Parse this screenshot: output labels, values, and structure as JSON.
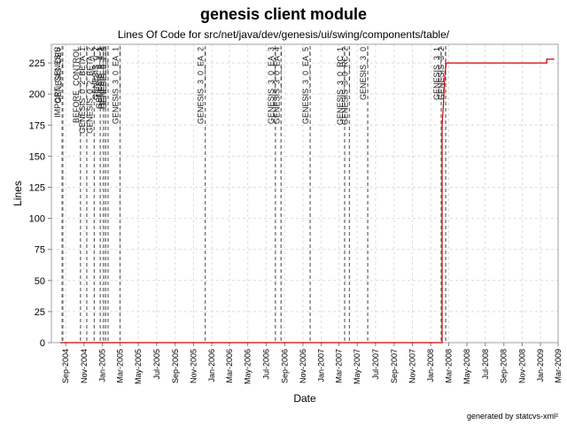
{
  "title": "genesis client module",
  "subtitle": "Lines Of Code for src/net/java/dev/genesis/ui/swing/components/table/",
  "footer": "generated by statcvs-xml²",
  "chart_data": {
    "type": "line",
    "xlabel": "Date",
    "ylabel": "Lines",
    "x_range": [
      "2004-07-15",
      "2009-03-01"
    ],
    "ylim": [
      0,
      240
    ],
    "y_ticks": [
      0,
      25,
      50,
      75,
      100,
      125,
      150,
      175,
      200,
      225
    ],
    "x_ticks": [
      {
        "date": "2004-09-01",
        "label": "Sep-2004"
      },
      {
        "date": "2004-11-01",
        "label": "Nov-2004"
      },
      {
        "date": "2005-01-01",
        "label": "Jan-2005"
      },
      {
        "date": "2005-03-01",
        "label": "Mar-2005"
      },
      {
        "date": "2005-05-01",
        "label": "May-2005"
      },
      {
        "date": "2005-07-01",
        "label": "Jul-2005"
      },
      {
        "date": "2005-09-01",
        "label": "Sep-2005"
      },
      {
        "date": "2005-11-01",
        "label": "Nov-2005"
      },
      {
        "date": "2006-01-01",
        "label": "Jan-2006"
      },
      {
        "date": "2006-03-01",
        "label": "Mar-2006"
      },
      {
        "date": "2006-05-01",
        "label": "May-2006"
      },
      {
        "date": "2006-07-01",
        "label": "Jul-2006"
      },
      {
        "date": "2006-09-01",
        "label": "Sep-2006"
      },
      {
        "date": "2006-11-01",
        "label": "Nov-2006"
      },
      {
        "date": "2007-01-01",
        "label": "Jan-2007"
      },
      {
        "date": "2007-03-01",
        "label": "Mar-2007"
      },
      {
        "date": "2007-05-01",
        "label": "May-2007"
      },
      {
        "date": "2007-07-01",
        "label": "Jul-2007"
      },
      {
        "date": "2007-09-01",
        "label": "Sep-2007"
      },
      {
        "date": "2007-11-01",
        "label": "Nov-2007"
      },
      {
        "date": "2008-01-01",
        "label": "Jan-2008"
      },
      {
        "date": "2008-03-01",
        "label": "Mar-2008"
      },
      {
        "date": "2008-05-01",
        "label": "May-2008"
      },
      {
        "date": "2008-07-01",
        "label": "Jul-2008"
      },
      {
        "date": "2008-09-01",
        "label": "Sep-2008"
      },
      {
        "date": "2008-11-01",
        "label": "Nov-2008"
      },
      {
        "date": "2009-01-01",
        "label": "Jan-2009"
      },
      {
        "date": "2009-03-01",
        "label": "Mar-2009"
      }
    ],
    "grid": true,
    "series_color": "#cc0000",
    "marker_color": "#707070",
    "series": [
      {
        "points": [
          {
            "x": "2004-08-15",
            "y": 0
          },
          {
            "x": "2008-02-08",
            "y": 0
          },
          {
            "x": "2008-02-08",
            "y": 175
          },
          {
            "x": "2008-02-12",
            "y": 190
          },
          {
            "x": "2008-02-15",
            "y": 205
          },
          {
            "x": "2008-02-18",
            "y": 218
          },
          {
            "x": "2008-02-22",
            "y": 225
          },
          {
            "x": "2008-03-01",
            "y": 225
          },
          {
            "x": "2009-01-22",
            "y": 225
          },
          {
            "x": "2009-01-22",
            "y": 228
          },
          {
            "x": "2009-02-15",
            "y": 228
          }
        ]
      }
    ],
    "markers": [
      {
        "date": "2004-08-20",
        "label": "IMPORT_GENESIS"
      },
      {
        "date": "2004-08-22",
        "label": "GENESIS_DEV"
      },
      {
        "date": "2004-10-20",
        "label": "BEFORE_CONTROL"
      },
      {
        "date": "2004-11-10",
        "label": "GENESIS_0_2_BETA_1"
      },
      {
        "date": "2004-12-05",
        "label": "GENESIS_0_2_BETA_2"
      },
      {
        "date": "2004-12-25",
        "label": "GENESIS_0_2"
      },
      {
        "date": "2005-01-05",
        "label": "GENESIS_0_2_1"
      },
      {
        "date": "2005-01-12",
        "label": "GENESIS_0_2_2"
      },
      {
        "date": "2005-01-20",
        "label": "GENESIS_0_2_3"
      },
      {
        "date": "2005-03-01",
        "label": "GENESIS_3_0_EA_1"
      },
      {
        "date": "2005-12-10",
        "label": "GENESIS_3_0_EA_2"
      },
      {
        "date": "2006-08-01",
        "label": "GENESIS_3_0_EA_3"
      },
      {
        "date": "2006-08-20",
        "label": "GENESIS_3_0_EA_4"
      },
      {
        "date": "2006-11-25",
        "label": "GENESIS_3_0_EA_5"
      },
      {
        "date": "2007-03-20",
        "label": "GENESIS_3_0_RC_1"
      },
      {
        "date": "2007-04-05",
        "label": "GENESIS_3_0_RC_2"
      },
      {
        "date": "2007-06-05",
        "label": "GENESIS_3_0"
      },
      {
        "date": "2008-02-05",
        "label": "GENESIS_3_1"
      },
      {
        "date": "2008-02-20",
        "label": "GENESIS_3_2"
      }
    ]
  }
}
